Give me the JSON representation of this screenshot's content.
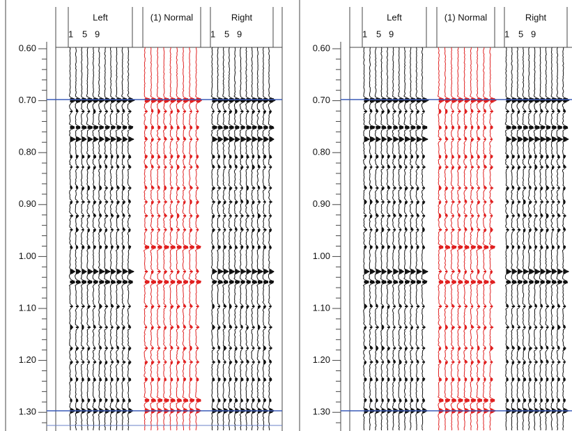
{
  "panels": [
    {
      "axis_labels": [
        "0.60",
        "0.70",
        "0.80",
        "0.90",
        "1.00",
        "1.10",
        "1.20",
        "1.30"
      ],
      "columns": [
        {
          "title": "Left",
          "trace_labels": [
            "1",
            "5",
            "9"
          ]
        },
        {
          "title": "(1) Normal"
        },
        {
          "title": "Right",
          "trace_labels": [
            "1",
            "5",
            "9"
          ]
        }
      ]
    },
    {
      "axis_labels": [
        "0.60",
        "0.70",
        "0.80",
        "0.90",
        "1.00",
        "1.10",
        "1.20",
        "1.30"
      ],
      "columns": [
        {
          "title": "Left",
          "trace_labels": [
            "1",
            "5",
            "9"
          ]
        },
        {
          "title": "(1) Normal"
        },
        {
          "title": "Right",
          "trace_labels": [
            "1",
            "5",
            "9"
          ]
        }
      ]
    }
  ]
}
